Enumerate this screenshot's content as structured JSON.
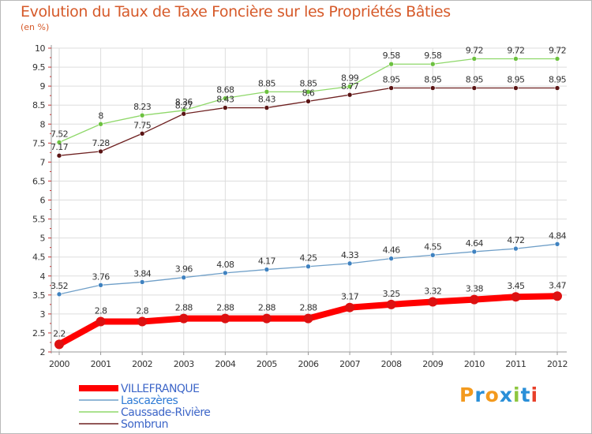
{
  "header": {
    "title": "Evolution du Taux de Taxe Foncière sur les Propriétés Bâties",
    "unit": "(en %)"
  },
  "brand": {
    "text": "Proxiti",
    "colors": [
      "#f39a1e",
      "#2a8fd8",
      "#f39a1e",
      "#2a8fd8",
      "#8dc63f",
      "#2a8fd8",
      "#e8402a"
    ]
  },
  "chart_data": {
    "type": "line",
    "title": "Evolution du Taux de Taxe Foncière sur les Propriétés Bâties",
    "ylabel": "(en %)",
    "xlabel": "",
    "x": [
      "2000",
      "2001",
      "2002",
      "2003",
      "2004",
      "2005",
      "2006",
      "2007",
      "2008",
      "2009",
      "2010",
      "2011",
      "2012"
    ],
    "ylim": [
      2,
      10
    ],
    "yticks": [
      2,
      2.5,
      3,
      3.5,
      4,
      4.5,
      5,
      5.5,
      6,
      6.5,
      7,
      7.5,
      8,
      8.5,
      9,
      9.5,
      10
    ],
    "ytick_labels": [
      "2",
      "2.5",
      "3",
      "3.5",
      "4",
      "4.5",
      "5",
      "5.5",
      "6",
      "6.5",
      "7",
      "7.5",
      "8",
      "8.5",
      "9",
      "9.5",
      "10"
    ],
    "grid": true,
    "legend_position": "bottom-left",
    "series": [
      {
        "name": "VILLEFRANQUE",
        "color": "#ff0000",
        "marker_color": "#dd1111",
        "values": [
          2.2,
          2.8,
          2.8,
          2.88,
          2.88,
          2.88,
          2.88,
          3.17,
          3.25,
          3.32,
          3.38,
          3.45,
          3.47
        ],
        "labels": [
          "2.2",
          "2.8",
          "2.8",
          "2.88",
          "2.88",
          "2.88",
          "2.88",
          "3.17",
          "3.25",
          "3.32",
          "3.38",
          "3.45",
          "3.47"
        ]
      },
      {
        "name": "Lascazères",
        "color": "#6f9fc8",
        "marker_color": "#3f82c0",
        "values": [
          3.52,
          3.76,
          3.84,
          3.96,
          4.08,
          4.17,
          4.25,
          4.33,
          4.46,
          4.55,
          4.64,
          4.72,
          4.84
        ],
        "labels": [
          "3.52",
          "3.76",
          "3.84",
          "3.96",
          "4.08",
          "4.17",
          "4.25",
          "4.33",
          "4.46",
          "4.55",
          "4.64",
          "4.72",
          "4.84"
        ]
      },
      {
        "name": "Caussade-Rivière",
        "color": "#8fd86a",
        "marker_color": "#6cc13f",
        "values": [
          7.52,
          8,
          8.23,
          8.36,
          8.68,
          8.85,
          8.85,
          8.99,
          9.58,
          9.58,
          9.72,
          9.72,
          9.72
        ],
        "labels": [
          "7.52",
          "8",
          "8.23",
          "8.36",
          "8.68",
          "8.85",
          "8.85",
          "8.99",
          "9.58",
          "9.58",
          "9.72",
          "9.72",
          "9.72"
        ]
      },
      {
        "name": "Sombrun",
        "color": "#6e2020",
        "marker_color": "#5a1414",
        "values": [
          7.17,
          7.28,
          7.75,
          8.27,
          8.43,
          8.43,
          8.6,
          8.77,
          8.95,
          8.95,
          8.95,
          8.95,
          8.95
        ],
        "labels": [
          "7.17",
          "7.28",
          "7.75",
          "8.27",
          "8.43",
          "8.43",
          "8.6",
          "8.77",
          "8.95",
          "8.95",
          "8.95",
          "8.95",
          "8.95"
        ]
      }
    ]
  }
}
